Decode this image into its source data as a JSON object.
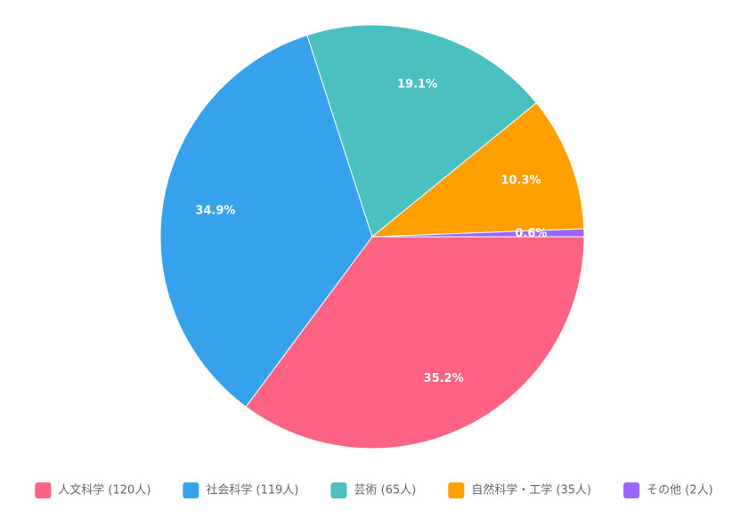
{
  "chart_data": {
    "type": "pie",
    "categories": [
      "人文科学 (120人)",
      "社会科学 (119人)",
      "芸術 (65人)",
      "自然科学・工学 (35人)",
      "その他 (2人)"
    ],
    "values": [
      35.2,
      34.9,
      19.1,
      10.3,
      0.6
    ],
    "value_labels": [
      "35.2%",
      "34.9%",
      "19.1%",
      "10.3%",
      "0.6%"
    ],
    "colors": [
      "#ff6384",
      "#36a2eb",
      "#4bc0c0",
      "#ff9f00",
      "#9966ff"
    ],
    "legend": "bottom"
  }
}
